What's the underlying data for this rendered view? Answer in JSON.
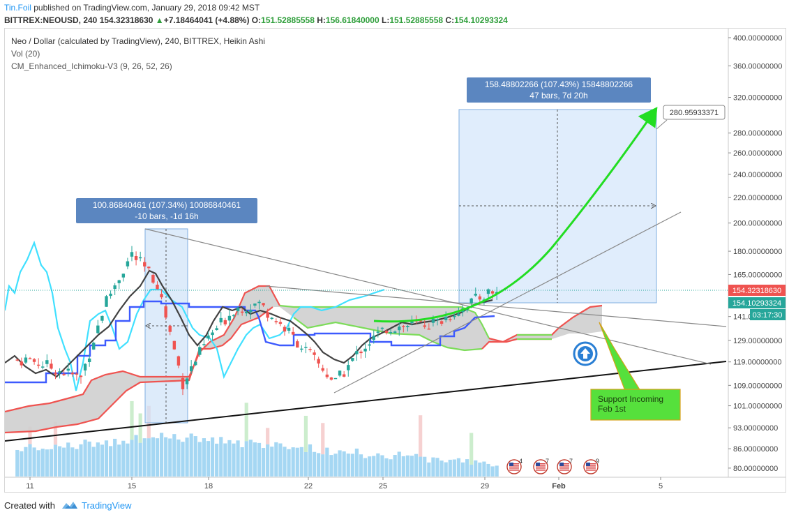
{
  "header": {
    "author": "Tin.Foil",
    "published": "published on TradingView.com, January 29, 2018 09:42 MST",
    "symbol": "BITTREX:NEOUSD, 240",
    "price": "154.32318630",
    "change": "+7.18464041 (+4.88%)",
    "o_label": "O:",
    "o": "151.52885558",
    "h_label": "H:",
    "h": "156.61840000",
    "l_label": "L:",
    "l": "151.52885558",
    "c_label": "C:",
    "c": "154.10293324"
  },
  "legend": {
    "title": "Neo / Dollar (calculated by TradingView), 240, BITTREX, Heikin Ashi",
    "vol": "Vol (20)",
    "indicator": "CM_Enhanced_Ichimoku-V3 (9, 26, 52, 26)"
  },
  "colors": {
    "up": "#26a69a",
    "down": "#ef5350",
    "bull_text": "#2e9e3a",
    "kijun": "#3d5afe",
    "tenkan": "#424242",
    "chikou": "#40e0ff",
    "cloud_fill": "#cfcfcf",
    "cloud_red": "#ef5350",
    "cloud_green": "#7ddc5a",
    "range_box": "#dbeafb",
    "label_box": "#5b86c0",
    "arrow": "#22dd22",
    "volume": "#8fcdf0",
    "note_bg": "#56e03c"
  },
  "chart_data": {
    "type": "candlestick",
    "price_scale": "log",
    "ylim": [
      76,
      410
    ],
    "y_ticks": [
      "400.00000000",
      "360.00000000",
      "320.00000000",
      "280.00000000",
      "260.00000000",
      "240.00000000",
      "220.00000000",
      "200.00000000",
      "180.00000000",
      "165.00000000",
      "141.00000000",
      "129.00000000",
      "119.00000000",
      "109.00000000",
      "101.00000000",
      "93.00000000",
      "86.00000000",
      "80.00000000"
    ],
    "x_ticks": [
      "11",
      "15",
      "18",
      "22",
      "25",
      "29",
      "Feb",
      "5"
    ],
    "price_labels": [
      {
        "value": "154.32318630",
        "kind": "last"
      },
      {
        "value": "154.10293324",
        "kind": "close"
      },
      {
        "value": "03:17:30",
        "kind": "countdown"
      }
    ],
    "approx_close_path": [
      {
        "x": "11",
        "y": 120
      },
      {
        "x": "13",
        "y": 112
      },
      {
        "x": "14",
        "y": 150
      },
      {
        "x": "15",
        "y": 178
      },
      {
        "x": "16",
        "y": 160
      },
      {
        "x": "17",
        "y": 110
      },
      {
        "x": "18",
        "y": 130
      },
      {
        "x": "19",
        "y": 145
      },
      {
        "x": "20",
        "y": 148
      },
      {
        "x": "21",
        "y": 135
      },
      {
        "x": "22",
        "y": 122
      },
      {
        "x": "23",
        "y": 110
      },
      {
        "x": "24",
        "y": 125
      },
      {
        "x": "25",
        "y": 135
      },
      {
        "x": "27",
        "y": 138
      },
      {
        "x": "29",
        "y": 154.3
      }
    ],
    "measure_labels": [
      {
        "line1": "100.86840461 (107.34%) 10086840461",
        "line2": "-10 bars, -1d 16h"
      },
      {
        "line1": "158.48802266 (107.43%) 15848802266",
        "line2": "47 bars, 7d 20h"
      }
    ],
    "target_label": "280.95933371",
    "annotation": "Support Incoming\nFeb 1st"
  },
  "events": [
    {
      "icon": "us-flag-icon",
      "count": "4"
    },
    {
      "icon": "us-flag-icon",
      "count": "7"
    },
    {
      "icon": "us-flag-icon",
      "count": "7"
    },
    {
      "icon": "us-flag-icon",
      "count": "9"
    }
  ],
  "footer": {
    "created": "Created with",
    "brand": "TradingView"
  }
}
